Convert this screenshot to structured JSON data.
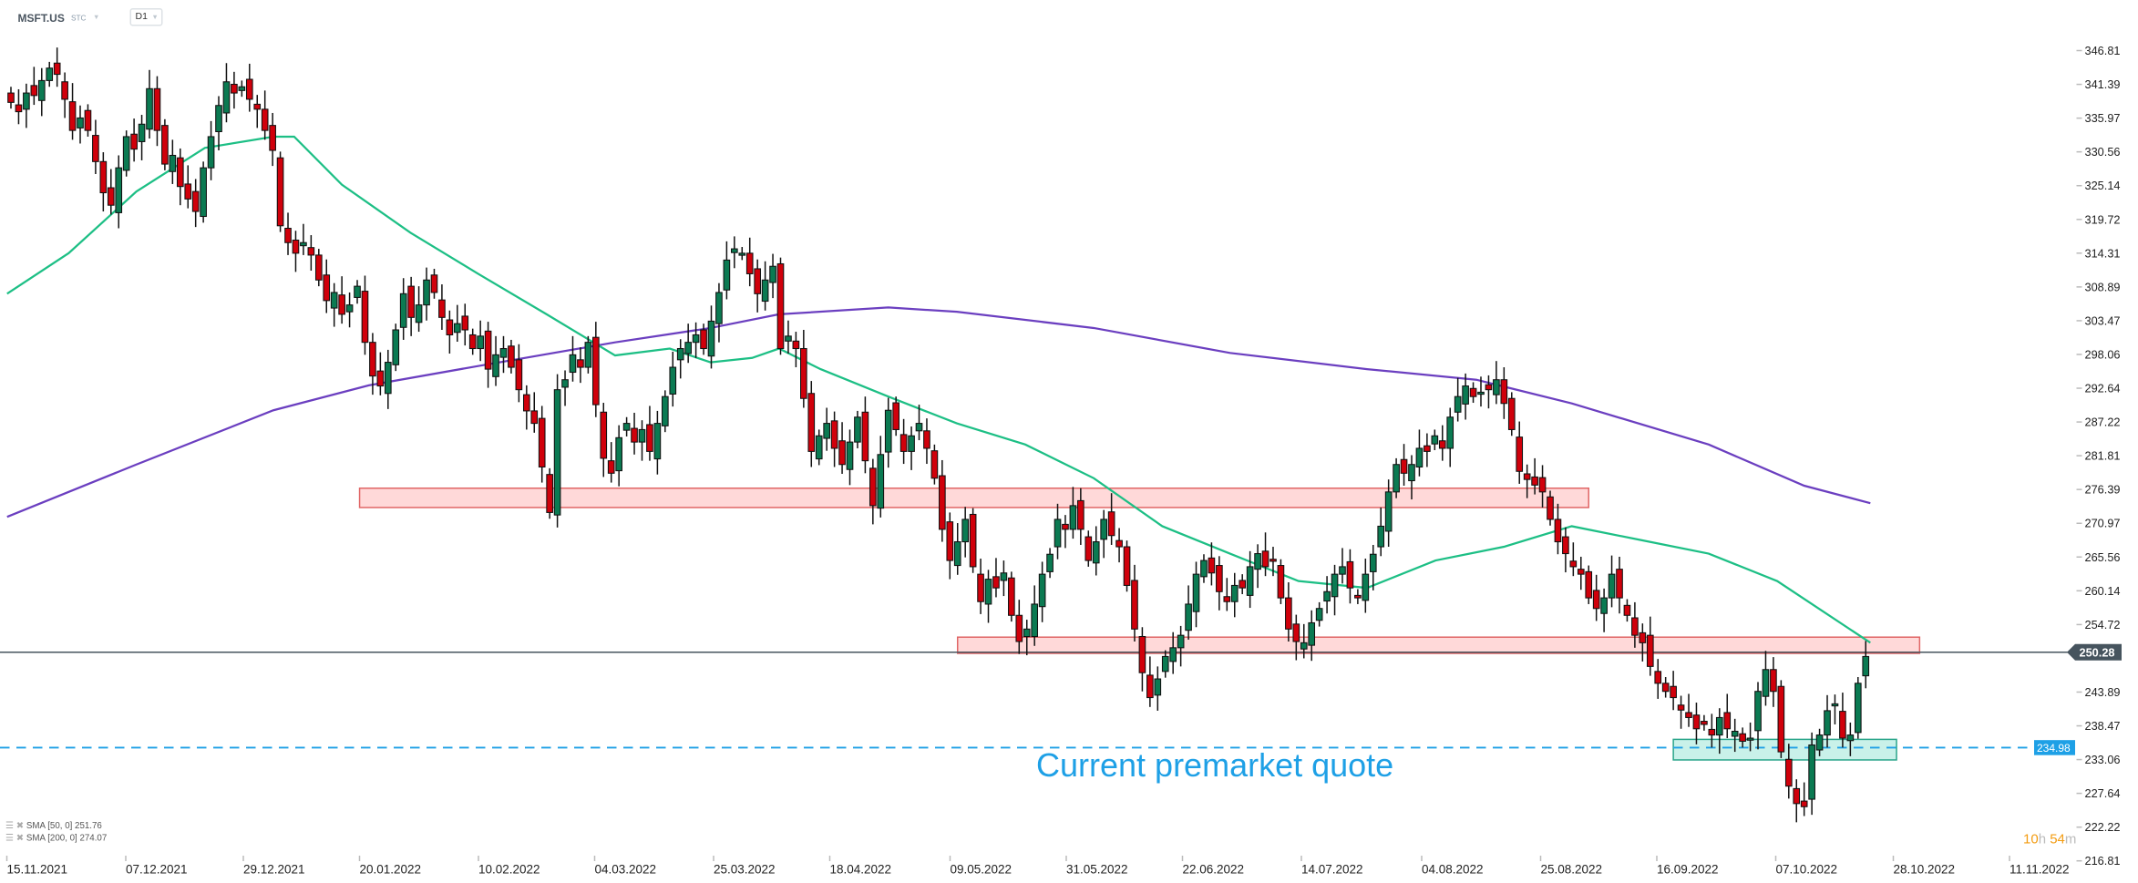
{
  "header": {
    "symbol": "MSFT.US",
    "type": "STC",
    "timeframe": "D1"
  },
  "legend": [
    {
      "label": "SMA [50, 0] 251.76",
      "color": "#1dbf85"
    },
    {
      "label": "SMA [200, 0] 274.07",
      "color": "#6b3fc0"
    }
  ],
  "timer": {
    "hours": "10",
    "h": "h",
    "minutes": "54",
    "m": "m"
  },
  "annotation": {
    "text": "Current premarket quote",
    "color": "#1ea0e6"
  },
  "chart_data": {
    "type": "candlestick",
    "title": "",
    "ylim": [
      216.81,
      346.81
    ],
    "y_ticks": [
      "346.81",
      "341.39",
      "335.97",
      "330.56",
      "325.14",
      "319.72",
      "314.31",
      "308.89",
      "303.47",
      "298.06",
      "292.64",
      "287.22",
      "281.81",
      "276.39",
      "270.97",
      "265.56",
      "260.14",
      "254.72",
      "243.89",
      "238.47",
      "233.06",
      "227.64",
      "222.22",
      "216.81"
    ],
    "x_ticks": [
      "15.11.2021",
      "07.12.2021",
      "29.12.2021",
      "20.01.2022",
      "10.02.2022",
      "04.03.2022",
      "25.03.2022",
      "18.04.2022",
      "09.05.2022",
      "31.05.2022",
      "22.06.2022",
      "14.07.2022",
      "04.08.2022",
      "25.08.2022",
      "16.09.2022",
      "07.10.2022",
      "28.10.2022",
      "11.11.2022"
    ],
    "colors": {
      "up": "#0b7a52",
      "down": "#d0000b",
      "sma50": "#1dbf85",
      "sma200": "#6b3fc0"
    },
    "close": [
      338.5,
      337,
      340,
      339.6,
      342,
      344,
      343,
      339,
      334,
      336,
      334,
      329,
      324,
      322,
      328,
      333,
      331,
      335,
      340.7,
      334,
      328.6,
      330,
      325,
      323,
      321,
      328,
      333,
      338,
      341.8,
      340,
      341,
      339,
      337.4,
      334,
      330.8,
      318.7,
      316,
      314.3,
      316,
      314,
      310,
      306.7,
      308,
      304.5,
      306,
      309,
      300,
      294.6,
      293,
      296.8,
      302,
      307.8,
      304,
      306,
      310,
      308,
      304,
      301.2,
      303,
      302,
      299,
      301,
      295.7,
      298,
      299,
      296,
      292.4,
      289,
      287,
      280,
      272.7,
      292.4,
      294,
      298,
      296,
      300,
      290,
      281.4,
      279,
      284.7,
      287,
      284,
      286,
      282.5,
      287,
      291.3,
      296,
      299,
      300,
      301.2,
      299,
      303.4,
      308,
      313.2,
      315,
      314.3,
      311,
      307.8,
      310,
      312.2,
      299,
      301,
      299,
      291,
      282.5,
      285,
      287,
      283,
      280.4,
      284,
      288,
      281,
      273.8,
      282,
      289.1,
      286,
      282.5,
      285,
      287,
      283,
      278.2,
      270,
      265,
      268,
      271.6,
      264,
      258.4,
      262,
      260.6,
      263,
      256.2,
      252,
      254,
      258,
      262.8,
      266,
      271.6,
      270,
      273.8,
      270,
      265,
      268,
      271.6,
      269,
      267.2,
      261,
      254,
      247,
      243,
      246,
      249.6,
      251,
      253,
      258,
      262.8,
      265,
      263,
      260,
      258.4,
      261,
      260.6,
      264,
      266.1,
      264,
      265,
      259,
      254,
      252,
      251.8,
      255,
      257.3,
      260,
      262.8,
      264,
      260.6,
      259,
      262.8,
      266,
      270.5,
      276,
      280.4,
      279,
      280.4,
      283,
      282.5,
      285,
      283,
      288,
      291.3,
      293,
      291.3,
      292,
      292.4,
      294,
      290.2,
      286,
      279.3,
      278,
      277.1,
      276,
      271.6,
      268,
      266.1,
      264,
      262.8,
      259,
      257.3,
      259,
      262.8,
      259,
      256.2,
      253,
      251.8,
      248,
      245.3,
      244,
      243,
      241,
      239.8,
      238,
      238.7,
      237,
      239.8,
      238,
      237.6,
      236,
      236.5,
      244,
      247.5,
      244,
      234.3,
      228.8,
      226,
      225.5,
      235.4,
      237,
      240.9,
      242,
      236.5,
      237,
      245.3,
      249.6
    ],
    "sma50": [
      [
        -0.5,
        307.8
      ],
      [
        7.5,
        314.3
      ],
      [
        16.3,
        324.2
      ],
      [
        25.2,
        331.2
      ],
      [
        34.1,
        333
      ],
      [
        36.8,
        333
      ],
      [
        43,
        325.3
      ],
      [
        51.9,
        317.6
      ],
      [
        60.7,
        311
      ],
      [
        69.6,
        304.5
      ],
      [
        78.5,
        297.9
      ],
      [
        85.6,
        299
      ],
      [
        90.9,
        296.8
      ],
      [
        96.3,
        297.5
      ],
      [
        99.8,
        299
      ],
      [
        105.2,
        295.7
      ],
      [
        114,
        291.3
      ],
      [
        122.9,
        287
      ],
      [
        131.8,
        283.6
      ],
      [
        140.7,
        278.2
      ],
      [
        149.6,
        270.5
      ],
      [
        158.4,
        266.1
      ],
      [
        167.3,
        261.7
      ],
      [
        176.2,
        260.6
      ],
      [
        185.1,
        265
      ],
      [
        194,
        267.2
      ],
      [
        202.8,
        270.5
      ],
      [
        211.7,
        268.3
      ],
      [
        220.6,
        266.1
      ],
      [
        229.5,
        261.7
      ],
      [
        241.6,
        251.8
      ]
    ],
    "sma200": [
      [
        -0.5,
        272
      ],
      [
        16.3,
        280.4
      ],
      [
        34.1,
        289.1
      ],
      [
        46.5,
        293.1
      ],
      [
        60.7,
        296.2
      ],
      [
        78.5,
        300
      ],
      [
        90.9,
        302.3
      ],
      [
        99.8,
        304.5
      ],
      [
        114,
        305.6
      ],
      [
        122.9,
        304.9
      ],
      [
        140.7,
        302.3
      ],
      [
        158.4,
        298.3
      ],
      [
        176.2,
        295.7
      ],
      [
        190.4,
        294
      ],
      [
        202.8,
        290.2
      ],
      [
        220.6,
        283.6
      ],
      [
        233,
        277
      ],
      [
        241.6,
        274.2
      ]
    ],
    "zones": [
      {
        "kind": "resistance",
        "from": 45.3,
        "to": 205,
        "low": 273.5,
        "high": 276.6,
        "color": "#e06666"
      },
      {
        "kind": "resistance",
        "from": 123,
        "to": 248,
        "low": 250.1,
        "high": 252.7,
        "color": "#e06666"
      },
      {
        "kind": "support",
        "from": 216,
        "to": 245,
        "low": 233.0,
        "high": 236.3,
        "color": "#2aa58a"
      }
    ],
    "last_price": {
      "label": "250.28",
      "value": 250.28,
      "color": "#46545e"
    },
    "premarket_quote": {
      "label": "234.98",
      "value": 234.98,
      "color": "#1ea0e6"
    }
  }
}
